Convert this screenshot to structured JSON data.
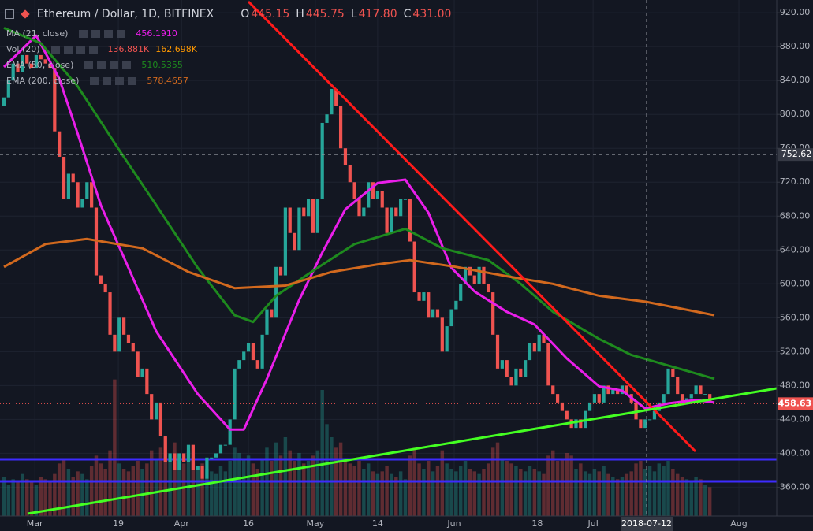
{
  "chart_data": {
    "type": "candlestick",
    "title": "Ethereum / Dollar, 1D, BITFINEX",
    "ohlc_labels": [
      {
        "key": "O",
        "value": "445.15"
      },
      {
        "key": "H",
        "value": "445.75"
      },
      {
        "key": "L",
        "value": "417.80"
      },
      {
        "key": "C",
        "value": "431.00"
      }
    ],
    "open": [
      810,
      820,
      840,
      860,
      850,
      870,
      860,
      855,
      870,
      865,
      860,
      855,
      780,
      750,
      700,
      730,
      720,
      690,
      700,
      720,
      690,
      610,
      600,
      590,
      540,
      520,
      560,
      540,
      530,
      520,
      490,
      500,
      470,
      440,
      460,
      420,
      390,
      400,
      380,
      400,
      390,
      410,
      380,
      385,
      370,
      395,
      395,
      400,
      410,
      410,
      440,
      500,
      510,
      520,
      530,
      510,
      500,
      540,
      570,
      560,
      620,
      610,
      690,
      660,
      640,
      690,
      680,
      700,
      660,
      700,
      790,
      800,
      830,
      810,
      760,
      740,
      720,
      700,
      680,
      690,
      720,
      700,
      710,
      690,
      660,
      690,
      680,
      700,
      700,
      650,
      590,
      580,
      590,
      560,
      570,
      560,
      520,
      550,
      570,
      580,
      600,
      620,
      610,
      600,
      620,
      600,
      590,
      540,
      500,
      510,
      490,
      480,
      500,
      490,
      510,
      530,
      520,
      540,
      530,
      480,
      470,
      460,
      450,
      440,
      430,
      440,
      430,
      450,
      460,
      470,
      460,
      480,
      470,
      475,
      470,
      480,
      470,
      460,
      440,
      430,
      440,
      440,
      450,
      460,
      470,
      500,
      490,
      470,
      460,
      465,
      470,
      480,
      470,
      470
    ],
    "close": [
      820,
      840,
      860,
      850,
      870,
      860,
      855,
      870,
      865,
      860,
      855,
      780,
      750,
      700,
      730,
      720,
      690,
      700,
      720,
      690,
      610,
      600,
      590,
      540,
      520,
      560,
      540,
      530,
      520,
      490,
      500,
      470,
      440,
      460,
      420,
      390,
      400,
      380,
      400,
      390,
      410,
      380,
      385,
      370,
      395,
      395,
      400,
      410,
      410,
      440,
      500,
      510,
      520,
      530,
      510,
      500,
      540,
      570,
      560,
      620,
      610,
      690,
      660,
      640,
      690,
      680,
      700,
      660,
      700,
      790,
      800,
      830,
      810,
      760,
      740,
      720,
      700,
      680,
      690,
      720,
      700,
      710,
      690,
      660,
      690,
      680,
      700,
      700,
      650,
      590,
      580,
      590,
      560,
      570,
      560,
      520,
      550,
      570,
      580,
      600,
      620,
      610,
      600,
      620,
      600,
      590,
      540,
      500,
      510,
      490,
      480,
      500,
      490,
      510,
      530,
      520,
      540,
      530,
      480,
      470,
      460,
      450,
      440,
      430,
      440,
      430,
      450,
      460,
      470,
      460,
      480,
      470,
      475,
      470,
      480,
      470,
      460,
      440,
      430,
      440,
      440,
      450,
      460,
      470,
      500,
      490,
      470,
      460,
      465,
      470,
      480,
      470,
      470,
      460
    ],
    "up_color": "#26a69a",
    "down_color": "#ef5350",
    "ylim": [
      326,
      935
    ],
    "yticks": [
      {
        "value": 360,
        "label": "360.00"
      },
      {
        "value": 400,
        "label": "400.00"
      },
      {
        "value": 440,
        "label": "440.00"
      },
      {
        "value": 480,
        "label": "480.00"
      },
      {
        "value": 520,
        "label": "520.00"
      },
      {
        "value": 560,
        "label": "560.00"
      },
      {
        "value": 600,
        "label": "600.00"
      },
      {
        "value": 640,
        "label": "640.00"
      },
      {
        "value": 680,
        "label": "680.00"
      },
      {
        "value": 720,
        "label": "720.00"
      },
      {
        "value": 760,
        "label": "760.00"
      },
      {
        "value": 800,
        "label": "800.00"
      },
      {
        "value": 840,
        "label": "840.00"
      },
      {
        "value": 880,
        "label": "880.00"
      },
      {
        "value": 920,
        "label": "920.00"
      }
    ],
    "xlim": [
      -0.85,
      167.5
    ],
    "xticks": [
      {
        "value": 6.7,
        "label": "Mar"
      },
      {
        "value": 24.8,
        "label": "19"
      },
      {
        "value": 38.5,
        "label": "Apr"
      },
      {
        "value": 53,
        "label": "16"
      },
      {
        "value": 67.5,
        "label": "May"
      },
      {
        "value": 81,
        "label": "14"
      },
      {
        "value": 97.6,
        "label": "Jun"
      },
      {
        "value": 115.6,
        "label": "18"
      },
      {
        "value": 127.7,
        "label": "Jul"
      },
      {
        "value": 159.3,
        "label": "Aug"
      }
    ],
    "grid": true,
    "volume": {
      "name": "Vol (20)",
      "labels": [
        "136.881K",
        "162.698K"
      ],
      "label_colors": [
        "#ef5350",
        "#ff9800"
      ],
      "vlim": [
        0,
        600
      ],
      "values": [
        150,
        120,
        140,
        130,
        160,
        140,
        130,
        120,
        150,
        140,
        130,
        160,
        200,
        220,
        180,
        150,
        170,
        160,
        140,
        190,
        230,
        200,
        180,
        250,
        520,
        200,
        180,
        170,
        190,
        210,
        180,
        200,
        250,
        220,
        260,
        300,
        230,
        280,
        220,
        200,
        250,
        210,
        190,
        200,
        180,
        170,
        160,
        190,
        170,
        210,
        260,
        240,
        220,
        230,
        200,
        180,
        220,
        260,
        210,
        280,
        230,
        300,
        250,
        210,
        240,
        200,
        210,
        230,
        250,
        480,
        350,
        300,
        260,
        280,
        220,
        200,
        190,
        210,
        180,
        200,
        170,
        160,
        170,
        190,
        160,
        150,
        170,
        140,
        230,
        260,
        200,
        180,
        210,
        170,
        190,
        250,
        200,
        180,
        170,
        190,
        210,
        180,
        170,
        160,
        180,
        200,
        260,
        280,
        220,
        210,
        200,
        190,
        180,
        170,
        190,
        180,
        170,
        160,
        230,
        250,
        210,
        220,
        240,
        230,
        180,
        200,
        170,
        160,
        180,
        170,
        190,
        160,
        150,
        140,
        150,
        160,
        170,
        200,
        210,
        180,
        190,
        170,
        200,
        190,
        210,
        180,
        160,
        150,
        140,
        130,
        150,
        140,
        120,
        110
      ]
    },
    "lines": [
      {
        "name": "MA (21, close)",
        "legend_value": "456.1910",
        "color": "#e91ee9",
        "width": 3,
        "x": [
          0,
          7,
          12,
          16,
          21,
          27,
          33,
          42,
          49,
          52,
          57,
          64,
          69,
          74,
          81,
          87,
          92,
          97,
          102,
          109,
          115,
          122,
          129,
          134,
          139,
          144,
          150,
          154
        ],
        "values": [
          856,
          893,
          842,
          777,
          693,
          619,
          544,
          470,
          428,
          428,
          488,
          581,
          637,
          688,
          719,
          723,
          684,
          619,
          591,
          567,
          552,
          512,
          479,
          474,
          453,
          459,
          463,
          460
        ]
      },
      {
        "name": "EMA (50, close)",
        "legend_value": "510.5355",
        "color": "#1e8a1e",
        "width": 3,
        "x": [
          0,
          8,
          16,
          25,
          33,
          42,
          50,
          54,
          59,
          68,
          76,
          87,
          95,
          105,
          112,
          119,
          129,
          136,
          145,
          154
        ],
        "values": [
          902,
          884,
          833,
          758,
          693,
          619,
          563,
          555,
          586,
          619,
          647,
          665,
          642,
          628,
          600,
          567,
          535,
          516,
          502,
          488
        ]
      },
      {
        "name": "EMA (200, close)",
        "legend_value": "578.4657",
        "color": "#d2691e",
        "width": 3,
        "x": [
          0,
          9,
          18,
          30,
          40,
          50,
          61,
          71,
          81,
          88,
          98,
          109,
          119,
          129,
          139,
          154
        ],
        "values": [
          620,
          647,
          653,
          642,
          614,
          595,
          598,
          614,
          623,
          628,
          620,
          609,
          600,
          586,
          579,
          563
        ]
      }
    ],
    "crosshair": {
      "x": 139.3,
      "x_label": "2018-07-12",
      "y": 752.62
    },
    "last_price": 458.63
  }
}
